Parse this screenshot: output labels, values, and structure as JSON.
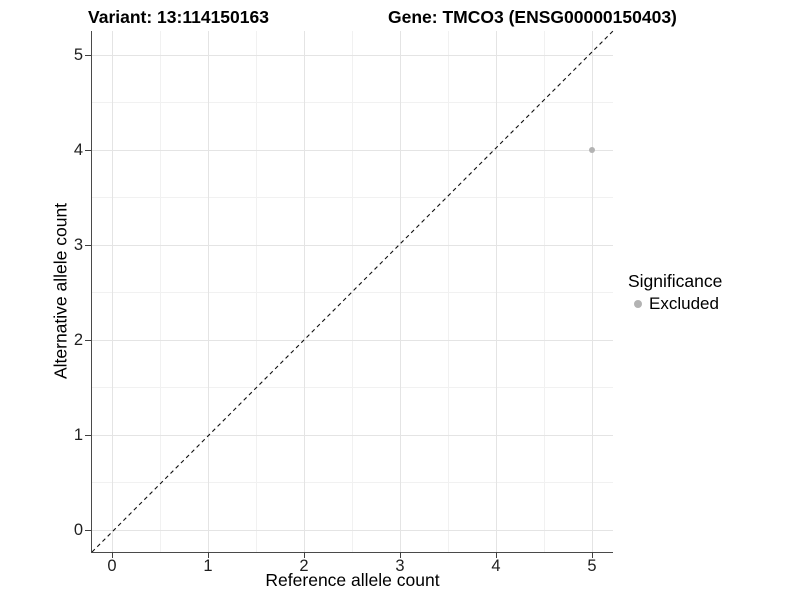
{
  "title": {
    "variant": "Variant: 13:114150163",
    "gene": "Gene: TMCO3 (ENSG00000150403)"
  },
  "chart_data": {
    "type": "scatter",
    "title": "Variant: 13:114150163   Gene: TMCO3 (ENSG00000150403)",
    "xlabel": "Reference allele count",
    "ylabel": "Alternative allele count",
    "xlim": [
      -0.25,
      5.25
    ],
    "ylim": [
      -0.25,
      5.25
    ],
    "xticks": [
      0,
      1,
      2,
      3,
      4,
      5
    ],
    "yticks": [
      0,
      1,
      2,
      3,
      4,
      5
    ],
    "grid": "major and minor gridlines, light grey on white",
    "reference_line": {
      "type": "identity y=x",
      "style": "dashed",
      "color": "#111111"
    },
    "series": [
      {
        "name": "Excluded",
        "color": "#b3b3b3",
        "points": [
          {
            "x": 5,
            "y": 4
          }
        ]
      }
    ],
    "legend": {
      "title": "Significance",
      "position": "right",
      "entries": [
        {
          "label": "Excluded",
          "color": "#b3b3b3"
        }
      ]
    }
  },
  "colors": {
    "background": "#ffffff",
    "grid_major": "#e4e4e4",
    "grid_minor": "#f1f1f1",
    "axis_line": "#4a4a4a",
    "tick_text": "#1f1f1f",
    "point": "#b3b3b3"
  }
}
